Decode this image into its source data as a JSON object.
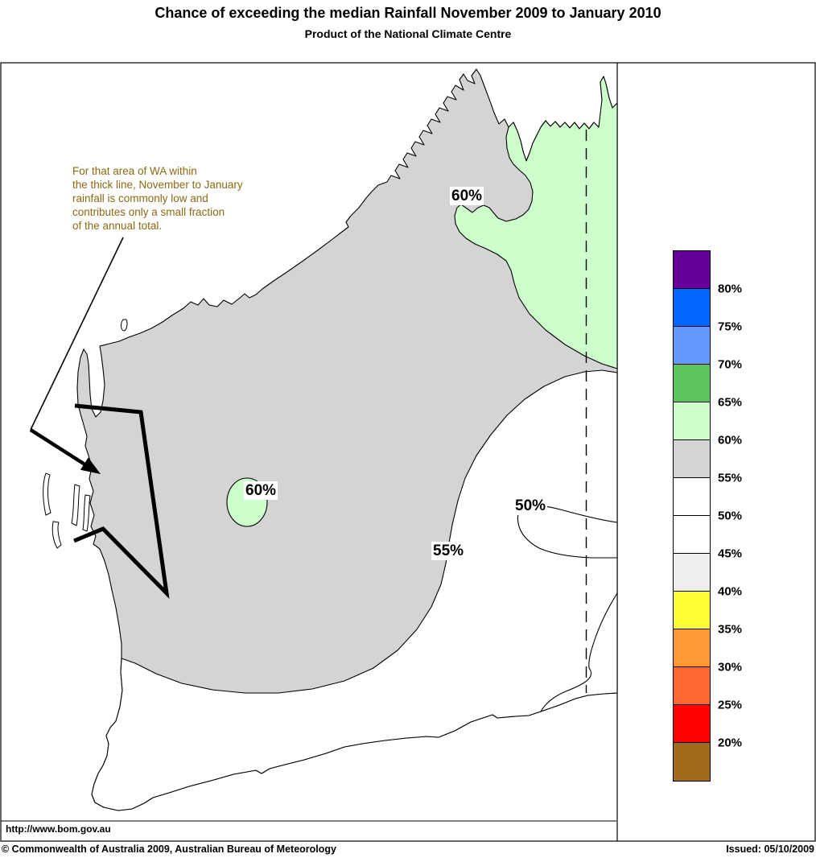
{
  "title": "Chance of exceeding the median Rainfall November 2009 to January 2010",
  "subtitle": "Product of the National Climate Centre",
  "annotation": {
    "lines": [
      "For that area of WA within",
      "the thick line, November to January",
      "rainfall is commonly low and",
      "contributes only a small fraction",
      "of the annual total."
    ],
    "color": "#8B6914"
  },
  "map": {
    "contour_labels": [
      "60%",
      "60%",
      "55%",
      "50%"
    ],
    "url_text": "http://www.bom.gov.au"
  },
  "colors": {
    "gray_55_60": "#D4D4D4",
    "green_60_65": "#CCFFCC",
    "white_50_55": "#FFFFFF"
  },
  "legend": {
    "cells": [
      "#660099",
      "#0066FF",
      "#6699FF",
      "#5EC45E",
      "#CCFFCC",
      "#D4D4D4",
      "#FFFFFF",
      "#FFFFFF",
      "#EEEEEE",
      "#FFFF33",
      "#FF9933",
      "#FF6633",
      "#FF0000",
      "#A06B1A"
    ],
    "labels": [
      "80%",
      "75%",
      "70%",
      "65%",
      "60%",
      "55%",
      "50%",
      "45%",
      "40%",
      "35%",
      "30%",
      "25%",
      "20%"
    ]
  },
  "footer": {
    "copyright": "© Commonwealth of Australia 2009, Australian Bureau of Meteorology",
    "issued": "Issued: 05/10/2009"
  }
}
